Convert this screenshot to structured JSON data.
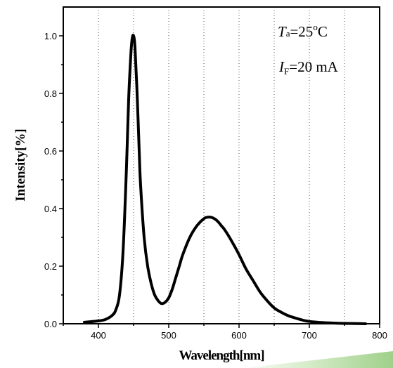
{
  "chart_data": {
    "type": "line",
    "xlabel": "Wavelength[nm]",
    "ylabel": "Intensity[%]",
    "xlim": [
      350,
      800
    ],
    "ylim": [
      0,
      1.1
    ],
    "x_ticks": [
      400,
      500,
      600,
      700,
      800
    ],
    "x_tick_labels": [
      "400",
      "500",
      "600",
      "700",
      "800"
    ],
    "y_ticks": [
      0.0,
      0.2,
      0.4,
      0.6,
      0.8,
      1.0
    ],
    "y_tick_labels": [
      "0.0",
      "0.2",
      "0.4",
      "0.6",
      "0.8",
      "1.0"
    ],
    "grid": "vertical-dotted",
    "grid_x": [
      400,
      450,
      500,
      550,
      600,
      650,
      700,
      750
    ],
    "series": [
      {
        "color": "#000000",
        "x": [
          380,
          400,
          410,
          420,
          425,
          430,
          435,
          440,
          443,
          446,
          448,
          450,
          452,
          455,
          458,
          460,
          465,
          470,
          475,
          480,
          485,
          490,
          495,
          500,
          505,
          510,
          515,
          520,
          530,
          540,
          550,
          555,
          560,
          565,
          570,
          575,
          580,
          590,
          600,
          610,
          620,
          630,
          640,
          650,
          660,
          670,
          680,
          690,
          700,
          720,
          740,
          760,
          780
        ],
        "y": [
          0.005,
          0.01,
          0.015,
          0.03,
          0.05,
          0.1,
          0.25,
          0.55,
          0.78,
          0.93,
          0.99,
          1.0,
          0.96,
          0.8,
          0.6,
          0.48,
          0.3,
          0.2,
          0.14,
          0.1,
          0.08,
          0.07,
          0.075,
          0.09,
          0.12,
          0.16,
          0.2,
          0.24,
          0.3,
          0.34,
          0.365,
          0.37,
          0.37,
          0.365,
          0.355,
          0.34,
          0.325,
          0.285,
          0.24,
          0.19,
          0.15,
          0.11,
          0.08,
          0.055,
          0.04,
          0.028,
          0.02,
          0.013,
          0.008,
          0.004,
          0.002,
          0.001,
          0.0
        ]
      }
    ],
    "annotations": {
      "temperature": {
        "symbol": "T",
        "subscript": "a",
        "value": "=25",
        "superscript": "o",
        "unit": "C"
      },
      "current": {
        "symbol": "I",
        "subscript": "F",
        "value": "=20 mA"
      }
    }
  },
  "colors": {
    "line": "#000000",
    "grid": "#555555",
    "stripe": "#9fd08a"
  }
}
